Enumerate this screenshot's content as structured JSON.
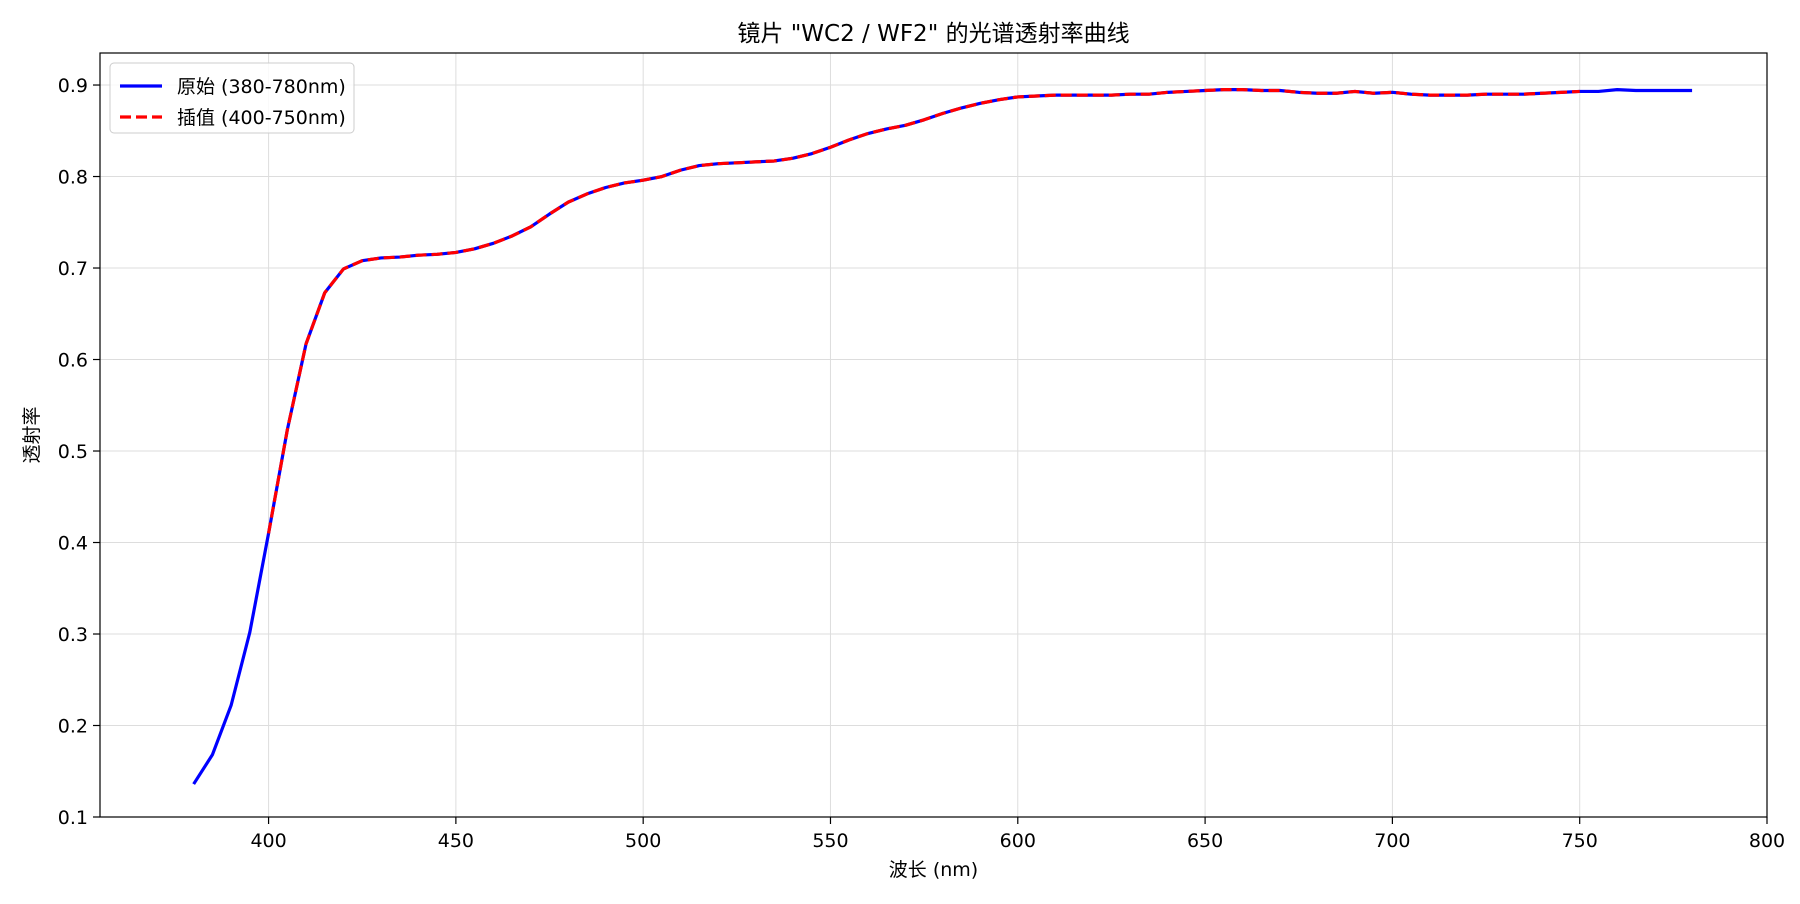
{
  "chart_data": {
    "type": "line",
    "title": "镜片 \"WC2 / WF2\" 的光谱透射率曲线",
    "xlabel": "波长 (nm)",
    "ylabel": "透射率",
    "xlim": [
      355,
      800
    ],
    "ylim": [
      0.1,
      0.935
    ],
    "xticks": [
      400,
      450,
      500,
      550,
      600,
      650,
      700,
      750,
      800
    ],
    "yticks": [
      0.1,
      0.2,
      0.3,
      0.4,
      0.5,
      0.6,
      0.7,
      0.8,
      0.9
    ],
    "grid": true,
    "legend": "top-left",
    "series": [
      {
        "name": "原始 (380-780nm)",
        "color": "#0000ff",
        "style": "solid",
        "x": [
          380,
          385,
          390,
          395,
          400,
          405,
          410,
          415,
          420,
          425,
          430,
          435,
          440,
          445,
          450,
          455,
          460,
          465,
          470,
          475,
          480,
          485,
          490,
          495,
          500,
          505,
          510,
          515,
          520,
          525,
          530,
          535,
          540,
          545,
          550,
          555,
          560,
          565,
          570,
          575,
          580,
          585,
          590,
          595,
          600,
          605,
          610,
          615,
          620,
          625,
          630,
          635,
          640,
          645,
          650,
          655,
          660,
          665,
          670,
          675,
          680,
          685,
          690,
          695,
          700,
          705,
          710,
          715,
          720,
          725,
          730,
          735,
          740,
          745,
          750,
          755,
          760,
          765,
          770,
          775,
          780
        ],
        "y": [
          0.136,
          0.168,
          0.222,
          0.302,
          0.41,
          0.523,
          0.617,
          0.673,
          0.699,
          0.708,
          0.711,
          0.712,
          0.714,
          0.715,
          0.717,
          0.721,
          0.727,
          0.735,
          0.745,
          0.759,
          0.772,
          0.781,
          0.788,
          0.793,
          0.796,
          0.8,
          0.807,
          0.812,
          0.814,
          0.815,
          0.816,
          0.817,
          0.82,
          0.825,
          0.832,
          0.84,
          0.847,
          0.852,
          0.856,
          0.862,
          0.869,
          0.875,
          0.88,
          0.884,
          0.887,
          0.888,
          0.889,
          0.889,
          0.889,
          0.889,
          0.89,
          0.89,
          0.892,
          0.893,
          0.894,
          0.895,
          0.895,
          0.894,
          0.894,
          0.892,
          0.891,
          0.891,
          0.893,
          0.891,
          0.892,
          0.89,
          0.889,
          0.889,
          0.889,
          0.89,
          0.89,
          0.89,
          0.891,
          0.892,
          0.893,
          0.893,
          0.895,
          0.894,
          0.894,
          0.894,
          0.894
        ]
      },
      {
        "name": "插值 (400-750nm)",
        "color": "#ff0000",
        "style": "dashed",
        "x": [
          400,
          405,
          410,
          415,
          420,
          425,
          430,
          435,
          440,
          445,
          450,
          455,
          460,
          465,
          470,
          475,
          480,
          485,
          490,
          495,
          500,
          505,
          510,
          515,
          520,
          525,
          530,
          535,
          540,
          545,
          550,
          555,
          560,
          565,
          570,
          575,
          580,
          585,
          590,
          595,
          600,
          605,
          610,
          615,
          620,
          625,
          630,
          635,
          640,
          645,
          650,
          655,
          660,
          665,
          670,
          675,
          680,
          685,
          690,
          695,
          700,
          705,
          710,
          715,
          720,
          725,
          730,
          735,
          740,
          745,
          750
        ],
        "y": [
          0.41,
          0.523,
          0.617,
          0.673,
          0.699,
          0.708,
          0.711,
          0.712,
          0.714,
          0.715,
          0.717,
          0.721,
          0.727,
          0.735,
          0.745,
          0.759,
          0.772,
          0.781,
          0.788,
          0.793,
          0.796,
          0.8,
          0.807,
          0.812,
          0.814,
          0.815,
          0.816,
          0.817,
          0.82,
          0.825,
          0.832,
          0.84,
          0.847,
          0.852,
          0.856,
          0.862,
          0.869,
          0.875,
          0.88,
          0.884,
          0.887,
          0.888,
          0.889,
          0.889,
          0.889,
          0.889,
          0.89,
          0.89,
          0.892,
          0.893,
          0.894,
          0.895,
          0.895,
          0.894,
          0.894,
          0.892,
          0.891,
          0.891,
          0.893,
          0.891,
          0.892,
          0.89,
          0.889,
          0.889,
          0.889,
          0.89,
          0.89,
          0.89,
          0.891,
          0.892,
          0.893
        ]
      }
    ]
  }
}
